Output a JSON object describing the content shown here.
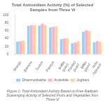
{
  "chart_data": {
    "type": "bar",
    "title": "Total Antioxidant Activity (%) of Selected Samples from Three Vi",
    "caption": "Figure 1: Total Antioxidant Activity Based on Free Radicals\nScavenging Activity of Selected Fruits and Vegetables from Three Vi",
    "categories": [
      "Mango",
      "Banana",
      "Guava",
      "Papaya",
      "Bottle\nguard",
      "Pointed\nguard",
      "Bitter\ngourd",
      "India\nSpinach"
    ],
    "series": [
      {
        "name": "Dhanmonkatha",
        "values": [
          32,
          72,
          73,
          68,
          38,
          28,
          57,
          30
        ]
      },
      {
        "name": "Anderkila",
        "values": [
          33,
          74,
          78,
          70,
          40,
          30,
          61,
          33
        ]
      },
      {
        "name": "Joghani",
        "values": [
          35,
          74,
          75,
          71,
          41,
          33,
          59,
          32
        ]
      }
    ],
    "ylim": [
      0,
      100
    ],
    "yticks": [
      0,
      20,
      40,
      60,
      80,
      100
    ],
    "grid": false,
    "legend": "bottom"
  }
}
